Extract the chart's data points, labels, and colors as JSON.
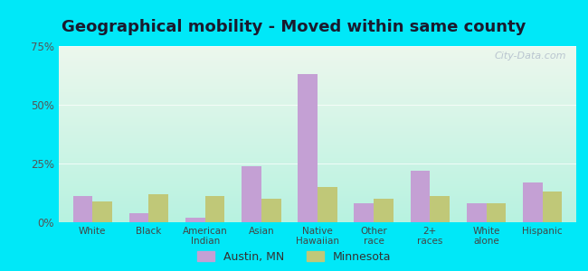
{
  "title": "Geographical mobility - Moved within same county",
  "categories": [
    "White",
    "Black",
    "American\nIndian",
    "Asian",
    "Native\nHawaiian",
    "Other\nrace",
    "2+\nraces",
    "White\nalone",
    "Hispanic"
  ],
  "austin_values": [
    11,
    4,
    2,
    24,
    63,
    8,
    22,
    8,
    17
  ],
  "minnesota_values": [
    9,
    12,
    11,
    10,
    15,
    10,
    11,
    8,
    13
  ],
  "austin_color": "#c4a0d4",
  "minnesota_color": "#c0c878",
  "background_outer": "#00e8f8",
  "ylim": [
    0,
    75
  ],
  "yticks": [
    0,
    25,
    50,
    75
  ],
  "ytick_labels": [
    "0%",
    "25%",
    "50%",
    "75%"
  ],
  "legend_labels": [
    "Austin, MN",
    "Minnesota"
  ],
  "watermark": "City-Data.com",
  "title_fontsize": 13,
  "bar_width": 0.35
}
